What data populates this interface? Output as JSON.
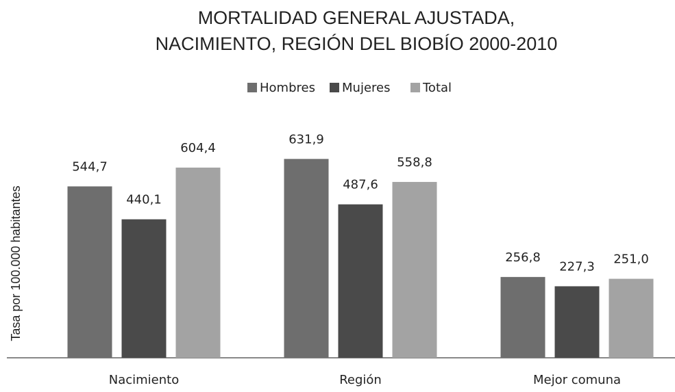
{
  "chart_data": {
    "type": "bar",
    "title": [
      "MORTALIDAD GENERAL AJUSTADA,",
      "NACIMIENTO, REGIÓN DEL BIOBÍO 2000-2010"
    ],
    "y_label": "Tasa por 100.000 habitantes",
    "categories": [
      "Nacimiento",
      "Región",
      "Mejor comuna"
    ],
    "series": [
      {
        "name": "Hombres",
        "color": "#6e6e6e",
        "values": [
          544.7,
          631.9,
          256.8
        ],
        "value_labels": [
          "544,7",
          "631,9",
          "256,8"
        ]
      },
      {
        "name": "Mujeres",
        "color": "#4a4a4a",
        "values": [
          440.1,
          487.6,
          227.3
        ],
        "value_labels": [
          "440,1",
          "487,6",
          "227,3"
        ]
      },
      {
        "name": "Total",
        "color": "#a3a3a3",
        "values": [
          604.4,
          558.8,
          251.0
        ],
        "value_labels": [
          "604,4",
          "558,8",
          "251,0"
        ]
      }
    ],
    "ylim": [
      0,
      700
    ],
    "legend": "top"
  }
}
